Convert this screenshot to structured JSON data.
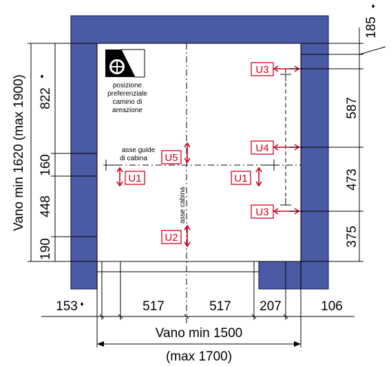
{
  "dimensions": {
    "top_offset": "185",
    "right_587": "587",
    "right_473": "473",
    "right_375": "375",
    "left_822": "822",
    "left_160": "160",
    "left_448": "448",
    "left_190": "190",
    "bottom_153": "153",
    "bottom_517a": "517",
    "bottom_517b": "517",
    "bottom_207": "207",
    "bottom_106": "106"
  },
  "labels": {
    "vano_vertical": "Vano min 1620 (max 1900)",
    "vano_horizontal": "Vano min 1500",
    "vano_horizontal_max": "(max 1700)",
    "asse_guide_1": "asse guide",
    "asse_guide_2": "di cabina",
    "asse_cabina": "asse cabina",
    "posizione_1": "posizione",
    "posizione_2": "preferenziale",
    "posizione_3": "camino di",
    "posizione_4": "areazione",
    "diamond": "♦"
  },
  "tags": {
    "u1_left": "U1",
    "u1_right": "U1",
    "u2": "U2",
    "u3_top": "U3",
    "u3_bottom": "U3",
    "u4": "U4",
    "u5": "U5"
  },
  "colors": {
    "wall": "#4a5aa4",
    "marker": "#d0021b"
  },
  "icons": {
    "fan": "ventilation-fan-icon"
  }
}
